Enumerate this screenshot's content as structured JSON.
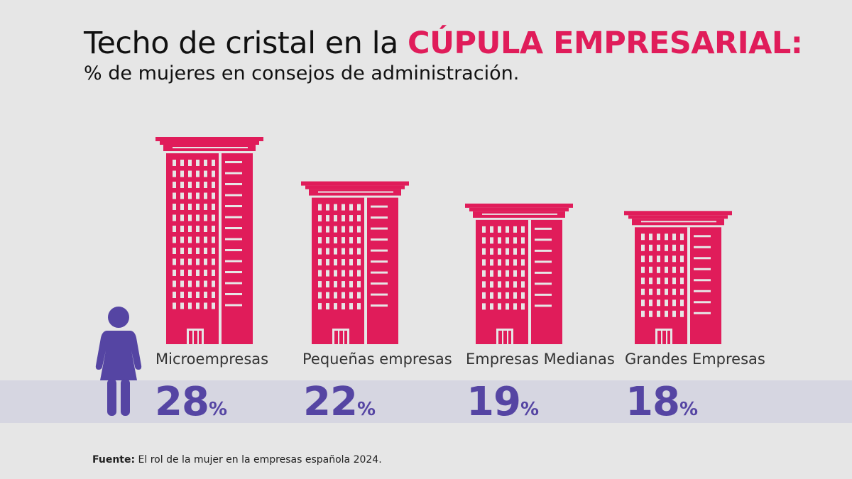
{
  "title": {
    "plain": "Techo de cristal en la ",
    "accent": "CÚPULA EMPRESARIAL:"
  },
  "subtitle": "% de mujeres en consejos de administración.",
  "colors": {
    "building": "#e01c5a",
    "figure": "#5545a3",
    "percent": "#5545a3",
    "band": "#d6d6e1",
    "background": "#e6e6e6"
  },
  "icons": {
    "figure": "woman-figure-icon",
    "building": "building-icon"
  },
  "chart_data": {
    "type": "bar",
    "categories": [
      "Microempresas",
      "Pequeñas empresas",
      "Empresas Medianas",
      "Grandes Empresas"
    ],
    "values": [
      28,
      22,
      19,
      18
    ],
    "value_labels": [
      "28",
      "22",
      "19",
      "18"
    ],
    "value_suffix": "%",
    "ylabel": "",
    "xlabel": ""
  },
  "source": {
    "label": "Fuente:",
    "text": " El rol de la mujer en la empresas española 2024."
  }
}
